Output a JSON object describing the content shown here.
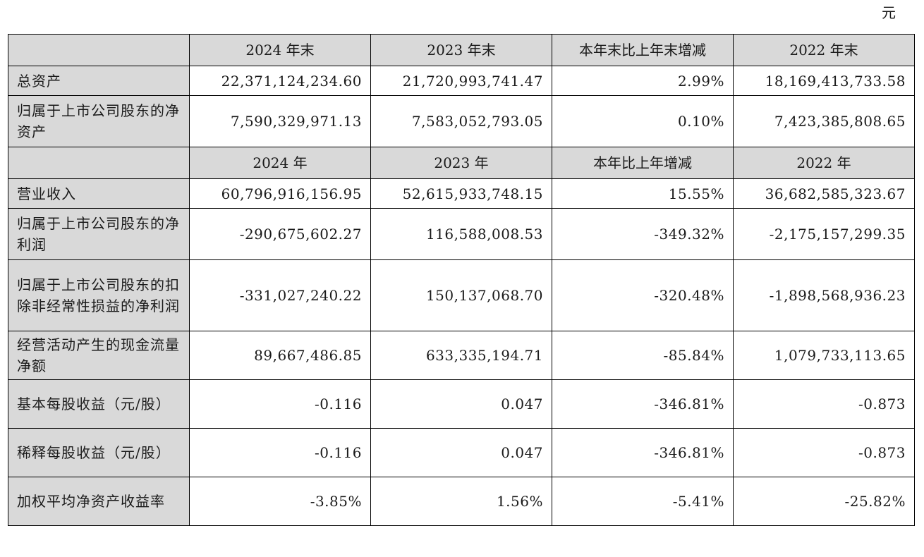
{
  "unit": "元",
  "balance_header": [
    "2024 年末",
    "2023 年末",
    "本年末比上年末增减",
    "2022 年末"
  ],
  "balance_rows": [
    {
      "label": "总资产",
      "v2024": "22,371,124,234.60",
      "v2023": "21,720,993,741.47",
      "change": "2.99%",
      "v2022": "18,169,413,733.58"
    },
    {
      "label": "归属于上市公司股东的净资产",
      "v2024": "7,590,329,971.13",
      "v2023": "7,583,052,793.05",
      "change": "0.10%",
      "v2022": "7,423,385,808.65"
    }
  ],
  "income_header": [
    "2024 年",
    "2023 年",
    "本年比上年增减",
    "2022 年"
  ],
  "income_rows": [
    {
      "label": "营业收入",
      "v2024": "60,796,916,156.95",
      "v2023": "52,615,933,748.15",
      "change": "15.55%",
      "v2022": "36,682,585,323.67"
    },
    {
      "label": "归属于上市公司股东的净利润",
      "v2024": "-290,675,602.27",
      "v2023": "116,588,008.53",
      "change": "-349.32%",
      "v2022": "-2,175,157,299.35"
    },
    {
      "label": "归属于上市公司股东的扣除非经常性损益的净利润",
      "v2024": "-331,027,240.22",
      "v2023": "150,137,068.70",
      "change": "-320.48%",
      "v2022": "-1,898,568,936.23"
    },
    {
      "label": "经营活动产生的现金流量净额",
      "v2024": "89,667,486.85",
      "v2023": "633,335,194.71",
      "change": "-85.84%",
      "v2022": "1,079,733,113.65"
    },
    {
      "label": "基本每股收益（元/股）",
      "v2024": "-0.116",
      "v2023": "0.047",
      "change": "-346.81%",
      "v2022": "-0.873"
    },
    {
      "label": "稀释每股收益（元/股）",
      "v2024": "-0.116",
      "v2023": "0.047",
      "change": "-346.81%",
      "v2022": "-0.873"
    },
    {
      "label": "加权平均净资产收益率",
      "v2024": "-3.85%",
      "v2023": "1.56%",
      "change": "-5.41%",
      "v2022": "-25.82%"
    }
  ]
}
